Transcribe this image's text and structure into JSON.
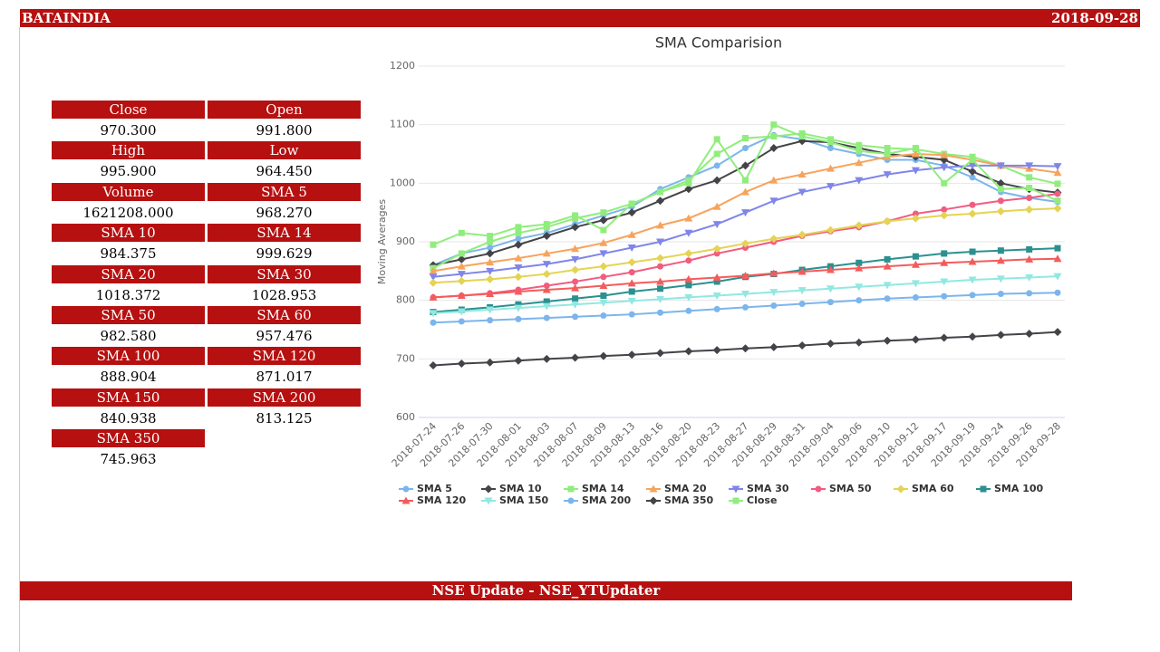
{
  "header": {
    "title": "BATAINDIA",
    "date": "2018-09-28"
  },
  "table": [
    {
      "label": "Close",
      "value": "970.300"
    },
    {
      "label": "Open",
      "value": "991.800"
    },
    {
      "label": "High",
      "value": "995.900"
    },
    {
      "label": "Low",
      "value": "964.450"
    },
    {
      "label": "Volume",
      "value": "1621208.000"
    },
    {
      "label": "SMA 5",
      "value": "968.270"
    },
    {
      "label": "SMA 10",
      "value": "984.375"
    },
    {
      "label": "SMA 14",
      "value": "999.629"
    },
    {
      "label": "SMA 20",
      "value": "1018.372"
    },
    {
      "label": "SMA 30",
      "value": "1028.953"
    },
    {
      "label": "SMA 50",
      "value": "982.580"
    },
    {
      "label": "SMA 60",
      "value": "957.476"
    },
    {
      "label": "SMA 100",
      "value": "888.904"
    },
    {
      "label": "SMA 120",
      "value": "871.017"
    },
    {
      "label": "SMA 150",
      "value": "840.938"
    },
    {
      "label": "SMA 200",
      "value": "813.125"
    },
    {
      "label": "SMA 350",
      "value": "745.963"
    }
  ],
  "footer": "NSE Update - NSE_YTUpdater",
  "chart_data": {
    "type": "line",
    "title": "SMA Comparision",
    "y_label": "Moving Averages",
    "categories": [
      "2018-07-24",
      "2018-07-26",
      "2018-07-30",
      "2018-08-01",
      "2018-08-03",
      "2018-08-07",
      "2018-08-09",
      "2018-08-13",
      "2018-08-16",
      "2018-08-20",
      "2018-08-23",
      "2018-08-27",
      "2018-08-29",
      "2018-08-31",
      "2018-09-04",
      "2018-09-06",
      "2018-09-10",
      "2018-09-12",
      "2018-09-17",
      "2018-09-19",
      "2018-09-24",
      "2018-09-26",
      "2018-09-28"
    ],
    "ylim": [
      600,
      1200
    ],
    "yticks": [
      600,
      700,
      800,
      900,
      1000,
      1100,
      1200
    ],
    "grid": true,
    "series": [
      {
        "name": "SMA 5",
        "color": "#7cb5ec",
        "marker": "circle",
        "values": [
          860,
          880,
          890,
          905,
          915,
          930,
          945,
          960,
          990,
          1010,
          1030,
          1060,
          1082,
          1075,
          1060,
          1050,
          1040,
          1040,
          1030,
          1010,
          985,
          975,
          968
        ]
      },
      {
        "name": "SMA 10",
        "color": "#434348",
        "marker": "diamond",
        "values": [
          860,
          870,
          880,
          895,
          910,
          925,
          937,
          950,
          970,
          990,
          1005,
          1030,
          1060,
          1072,
          1070,
          1060,
          1050,
          1045,
          1040,
          1020,
          1000,
          990,
          984
        ]
      },
      {
        "name": "SMA 14",
        "color": "#90ed7d",
        "marker": "square",
        "values": [
          855,
          880,
          900,
          915,
          925,
          940,
          950,
          965,
          985,
          1005,
          1050,
          1077,
          1080,
          1085,
          1075,
          1065,
          1060,
          1058,
          1050,
          1045,
          1030,
          1010,
          999
        ]
      },
      {
        "name": "SMA 20",
        "color": "#f7a35c",
        "marker": "triangle",
        "values": [
          850,
          858,
          865,
          872,
          880,
          888,
          898,
          912,
          928,
          940,
          960,
          985,
          1005,
          1015,
          1025,
          1035,
          1045,
          1050,
          1048,
          1040,
          1030,
          1025,
          1018
        ]
      },
      {
        "name": "SMA 30",
        "color": "#8085e9",
        "marker": "triangle-down",
        "values": [
          840,
          845,
          850,
          856,
          862,
          870,
          880,
          890,
          900,
          915,
          930,
          950,
          970,
          985,
          995,
          1005,
          1015,
          1022,
          1027,
          1030,
          1030,
          1030,
          1029
        ]
      },
      {
        "name": "SMA 50",
        "color": "#f15c80",
        "marker": "circle",
        "values": [
          805,
          808,
          812,
          818,
          825,
          832,
          840,
          848,
          858,
          868,
          880,
          890,
          900,
          910,
          918,
          925,
          935,
          948,
          955,
          963,
          970,
          975,
          982
        ]
      },
      {
        "name": "SMA 60",
        "color": "#e4d354",
        "marker": "diamond",
        "values": [
          830,
          833,
          836,
          840,
          845,
          852,
          858,
          865,
          872,
          880,
          888,
          897,
          905,
          912,
          920,
          928,
          935,
          940,
          945,
          948,
          952,
          955,
          957
        ]
      },
      {
        "name": "SMA 100",
        "color": "#2b908f",
        "marker": "square",
        "values": [
          780,
          784,
          788,
          793,
          798,
          803,
          808,
          815,
          820,
          826,
          832,
          840,
          845,
          852,
          858,
          864,
          870,
          875,
          880,
          883,
          885,
          887,
          889
        ]
      },
      {
        "name": "SMA 120",
        "color": "#f45b5b",
        "marker": "triangle",
        "values": [
          805,
          808,
          811,
          815,
          818,
          821,
          825,
          829,
          832,
          836,
          839,
          842,
          846,
          849,
          852,
          855,
          858,
          861,
          864,
          866,
          868,
          870,
          871
        ]
      },
      {
        "name": "SMA 150",
        "color": "#91e8e1",
        "marker": "triangle-down",
        "values": [
          778,
          781,
          784,
          787,
          790,
          793,
          796,
          799,
          802,
          805,
          808,
          811,
          814,
          817,
          820,
          823,
          826,
          829,
          832,
          835,
          837,
          839,
          841
        ]
      },
      {
        "name": "SMA 200",
        "color": "#7cb5ec",
        "marker": "circle",
        "values": [
          762,
          764,
          766,
          768,
          770,
          772,
          774,
          776,
          779,
          782,
          785,
          788,
          791,
          794,
          797,
          800,
          803,
          805,
          807,
          809,
          811,
          812,
          813
        ]
      },
      {
        "name": "SMA 350",
        "color": "#434348",
        "marker": "diamond",
        "values": [
          689,
          692,
          694,
          697,
          700,
          702,
          705,
          707,
          710,
          713,
          715,
          718,
          720,
          723,
          726,
          728,
          731,
          733,
          736,
          738,
          741,
          743,
          746
        ]
      },
      {
        "name": "Close",
        "color": "#90ed7d",
        "marker": "square",
        "values": [
          895,
          915,
          910,
          925,
          930,
          945,
          920,
          965,
          985,
          1000,
          1075,
          1005,
          1100,
          1080,
          1070,
          1055,
          1050,
          1060,
          1000,
          1040,
          990,
          992,
          970
        ]
      }
    ]
  }
}
